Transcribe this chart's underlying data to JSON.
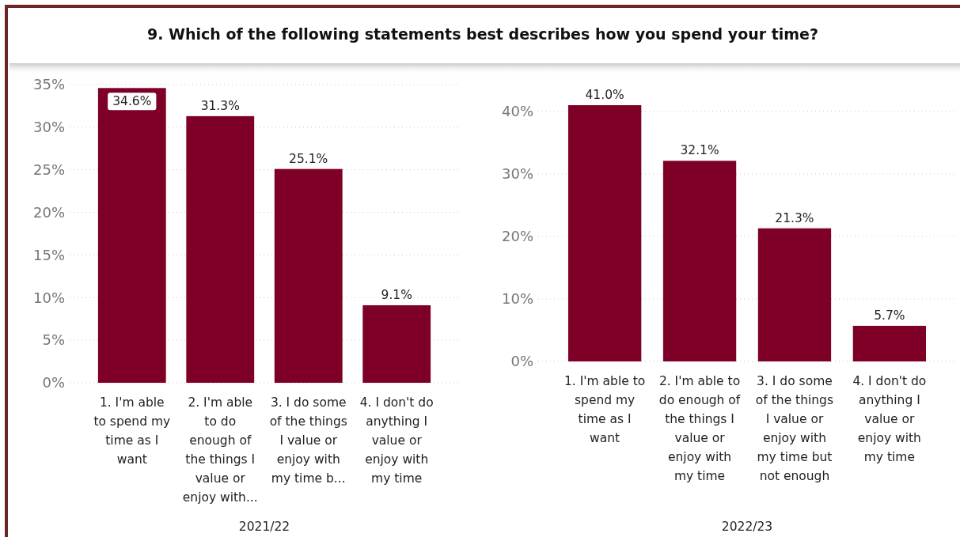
{
  "chart_data": [
    {
      "type": "bar",
      "title": "9. Which of the following statements best describes how you spend your time?",
      "xlabel": "2021/22",
      "categories": [
        "1. I'm able to spend my time as I want",
        "2. I'm able to do enough of the things I value or enjoy with...",
        "3. I do some of the things I value or enjoy with my time b...",
        "4. I don't do anything I value or enjoy with my time"
      ],
      "values": [
        34.6,
        31.3,
        25.1,
        9.1
      ],
      "value_labels": [
        "34.6%",
        "31.3%",
        "25.1%",
        "9.1%"
      ],
      "color": "#7f0027",
      "ylim": [
        0,
        35
      ],
      "yticks": [
        {
          "value": 0,
          "label": "0%"
        },
        {
          "value": 5,
          "label": "5%"
        },
        {
          "value": 10,
          "label": "10%"
        },
        {
          "value": 15,
          "label": "15%"
        },
        {
          "value": 20,
          "label": "20%"
        },
        {
          "value": 25,
          "label": "25%"
        },
        {
          "value": 30,
          "label": "30%"
        },
        {
          "value": 35,
          "label": "35%"
        }
      ],
      "grid": "y"
    },
    {
      "type": "bar",
      "xlabel": "2022/23",
      "categories": [
        "1. I'm able to spend my time as I want",
        "2. I'm able to do enough of the things I value or enjoy with my time",
        "3. I do some of the things I value or enjoy with my time but not enough",
        "4. I don't do anything I value or enjoy with my time"
      ],
      "values": [
        41.0,
        32.1,
        21.3,
        5.7
      ],
      "value_labels": [
        "41.0%",
        "32.1%",
        "21.3%",
        "5.7%"
      ],
      "color": "#7f0027",
      "ylim": [
        0,
        41
      ],
      "yticks": [
        {
          "value": 0,
          "label": "0%"
        },
        {
          "value": 10,
          "label": "10%"
        },
        {
          "value": 20,
          "label": "20%"
        },
        {
          "value": 30,
          "label": "30%"
        },
        {
          "value": 40,
          "label": "40%"
        }
      ],
      "grid": "y"
    }
  ]
}
